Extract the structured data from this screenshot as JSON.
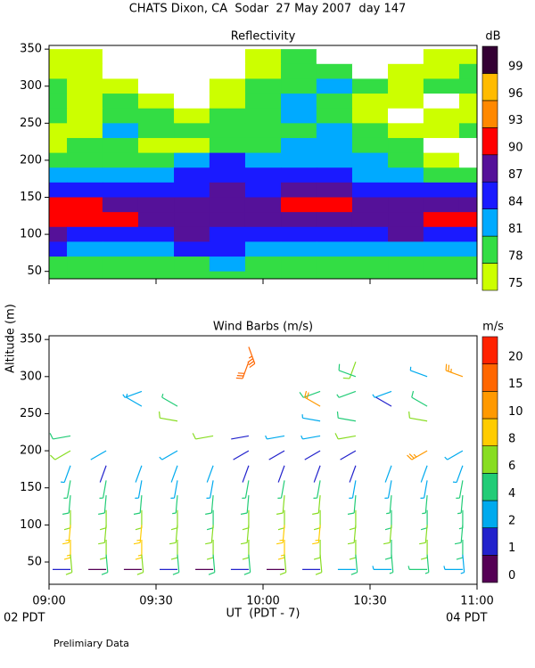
{
  "title": "CHATS Dixon, CA  Sodar  27 May 2007  day 147",
  "x_label": "UT  (PDT - 7)",
  "x_start_note": "02 PDT",
  "x_end_note": "04 PDT",
  "y_label": "Altitude (m)",
  "footnote": "Prelimiary Data",
  "chart_data": [
    {
      "type": "contour",
      "title": "Reflectivity",
      "colorbar_label": "dB",
      "x": [
        9,
        9.167,
        9.333,
        9.5,
        9.667,
        9.833,
        10,
        10.167,
        10.333,
        10.5,
        10.667,
        10.833,
        11
      ],
      "altitudes": [
        340,
        320,
        300,
        280,
        260,
        240,
        220,
        200,
        180,
        160,
        140,
        120,
        100,
        80,
        60,
        40
      ],
      "z": [
        [
          76,
          76,
          74,
          74,
          73,
          73,
          76,
          79,
          74,
          73,
          74,
          76,
          77
        ],
        [
          77,
          76,
          74,
          73,
          73,
          74,
          77,
          80,
          79,
          74,
          76,
          77,
          78
        ],
        [
          78,
          77,
          76,
          74,
          73,
          76,
          78,
          80,
          82,
          78,
          77,
          78,
          79
        ],
        [
          79,
          77,
          78,
          76,
          74,
          77,
          79,
          81,
          80,
          77,
          76,
          74,
          76
        ],
        [
          78,
          76,
          79,
          79,
          77,
          78,
          80,
          81,
          79,
          77,
          74,
          75,
          77
        ],
        [
          76,
          76,
          82,
          78,
          79,
          78,
          79,
          80,
          82,
          79,
          76,
          76,
          78
        ],
        [
          75,
          79,
          80,
          76,
          77,
          80,
          79,
          81,
          82,
          80,
          78,
          74,
          74
        ],
        [
          78,
          80,
          79,
          79,
          81,
          85,
          82,
          82,
          83,
          81,
          79,
          76,
          74
        ],
        [
          83,
          82,
          81,
          82,
          85,
          86,
          84,
          84,
          84,
          83,
          82,
          80,
          79
        ],
        [
          86,
          85,
          84,
          85,
          86,
          87,
          86,
          87,
          87,
          86,
          85,
          84,
          85
        ],
        [
          90,
          90,
          88,
          88,
          88,
          88,
          88,
          90,
          91,
          88,
          87,
          88,
          88
        ],
        [
          91,
          91,
          90,
          88,
          88,
          88,
          87,
          88,
          87,
          88,
          89,
          90,
          90
        ],
        [
          87,
          85,
          86,
          86,
          87,
          86,
          84,
          84,
          85,
          86,
          87,
          86,
          85
        ],
        [
          84,
          82,
          81,
          82,
          84,
          84,
          82,
          81,
          81,
          82,
          82,
          83,
          82
        ],
        [
          80,
          79,
          79,
          79,
          80,
          81,
          79,
          80,
          79,
          80,
          79,
          79,
          79
        ],
        [
          78,
          78,
          79,
          78,
          78,
          79,
          78,
          78,
          79,
          78,
          78,
          78,
          78
        ]
      ],
      "levels": [
        75,
        78,
        81,
        84,
        87,
        90,
        93,
        96,
        99
      ],
      "colors": [
        "#ccff00",
        "#33dd44",
        "#00aaff",
        "#1a1aff",
        "#551199",
        "#ff0000",
        "#ff8800",
        "#ffbb00",
        "#330033"
      ],
      "xlim": [
        9,
        11
      ],
      "ylim": [
        40,
        355
      ],
      "yticks": [
        50,
        100,
        150,
        200,
        250,
        300,
        350
      ]
    },
    {
      "type": "barbs",
      "title": "Wind Barbs (m/s)",
      "colorbar_label": "m/s",
      "x": [
        9.1,
        9.267,
        9.433,
        9.6,
        9.767,
        9.933,
        10.1,
        10.267,
        10.433,
        10.6,
        10.767,
        10.933
      ],
      "altitudes": [
        340,
        320,
        300,
        280,
        260,
        240,
        220,
        200,
        180,
        160,
        140,
        120,
        100,
        80,
        60,
        40
      ],
      "direction": [
        160,
        200,
        290,
        250,
        300,
        280,
        260,
        240,
        200,
        190,
        185,
        180,
        185,
        180,
        175,
        270
      ],
      "speed": [
        [
          null,
          null,
          null,
          null,
          null,
          18,
          null,
          null,
          null,
          null,
          null,
          null
        ],
        [
          null,
          null,
          null,
          null,
          null,
          17,
          null,
          null,
          6,
          null,
          null,
          null
        ],
        [
          null,
          null,
          null,
          null,
          null,
          null,
          null,
          null,
          5,
          null,
          3,
          14
        ],
        [
          null,
          null,
          3,
          null,
          null,
          null,
          null,
          5,
          4,
          3,
          null,
          null
        ],
        [
          null,
          null,
          3,
          4,
          null,
          null,
          null,
          12,
          null,
          1,
          5,
          null
        ],
        [
          null,
          null,
          null,
          7,
          null,
          null,
          null,
          3,
          5,
          null,
          6,
          null
        ],
        [
          5,
          null,
          null,
          null,
          6,
          1,
          3,
          3,
          6,
          null,
          null,
          null
        ],
        [
          6,
          2,
          null,
          3,
          null,
          1,
          1,
          1,
          1,
          null,
          14,
          3
        ],
        [
          3,
          1,
          2,
          2,
          2,
          1,
          1,
          1,
          1,
          2,
          2,
          3
        ],
        [
          4,
          4,
          3,
          3,
          3,
          4,
          4,
          4,
          3,
          3,
          3,
          4
        ],
        [
          5,
          5,
          5,
          4,
          5,
          5,
          6,
          6,
          5,
          4,
          4,
          4
        ],
        [
          6,
          6,
          7,
          6,
          5,
          6,
          7,
          7,
          6,
          5,
          5,
          4
        ],
        [
          8,
          7,
          8,
          7,
          6,
          7,
          8,
          8,
          7,
          6,
          6,
          5
        ],
        [
          8,
          7,
          8,
          7,
          6,
          6,
          8,
          7,
          6,
          5,
          6,
          5
        ],
        [
          6,
          5,
          6,
          5,
          5,
          5,
          6,
          6,
          5,
          4,
          4,
          3
        ],
        [
          1,
          0,
          0,
          1,
          0,
          1,
          0,
          1,
          2,
          3,
          4,
          3
        ]
      ],
      "levels": [
        0,
        1,
        2,
        4,
        6,
        8,
        10,
        15,
        20
      ],
      "colors": [
        "#550055",
        "#2222cc",
        "#00aaee",
        "#22cc77",
        "#88dd22",
        "#ffcc00",
        "#ff9900",
        "#ff6600",
        "#ff2200"
      ],
      "xlim": [
        9,
        11
      ],
      "ylim": [
        20,
        355
      ],
      "xticks": [
        {
          "value": 9,
          "label": "09:00"
        },
        {
          "value": 9.5,
          "label": "09:30"
        },
        {
          "value": 10,
          "label": "10:00"
        },
        {
          "value": 10.5,
          "label": "10:30"
        },
        {
          "value": 11,
          "label": "11:00"
        }
      ],
      "yticks": [
        50,
        100,
        150,
        200,
        250,
        300,
        350
      ]
    }
  ]
}
